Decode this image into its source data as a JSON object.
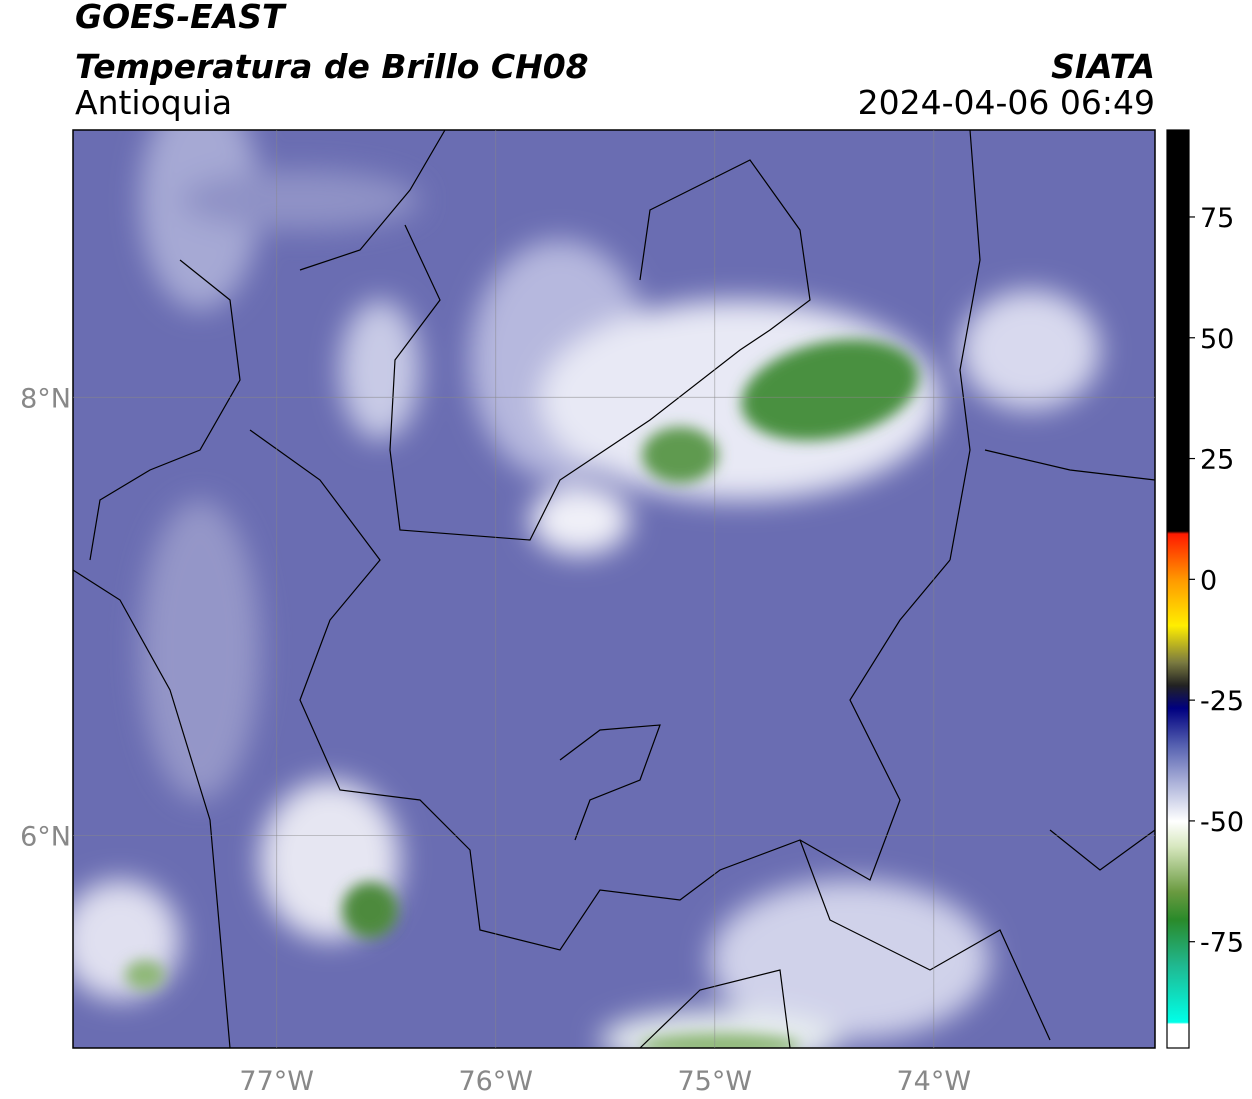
{
  "header": {
    "title": "GOES-EAST",
    "subtitle": "Temperatura de Brillo CH08",
    "source": "SIATA",
    "region": "Antioquia",
    "datetime": "2024-04-06 06:49"
  },
  "map": {
    "xlim": [
      -77.93,
      -72.99
    ],
    "ylim": [
      5.03,
      9.22
    ],
    "xticks": [
      {
        "value": -77,
        "label": "77°W"
      },
      {
        "value": -76,
        "label": "76°W"
      },
      {
        "value": -75,
        "label": "75°W"
      },
      {
        "value": -74,
        "label": "74°W"
      }
    ],
    "yticks": [
      {
        "value": 8,
        "label": "8°N"
      },
      {
        "value": 6,
        "label": "6°N"
      }
    ]
  },
  "colorbar": {
    "lim": [
      -97,
      93
    ],
    "ticks": [
      75,
      50,
      25,
      0,
      -25,
      -50,
      -75
    ]
  }
}
